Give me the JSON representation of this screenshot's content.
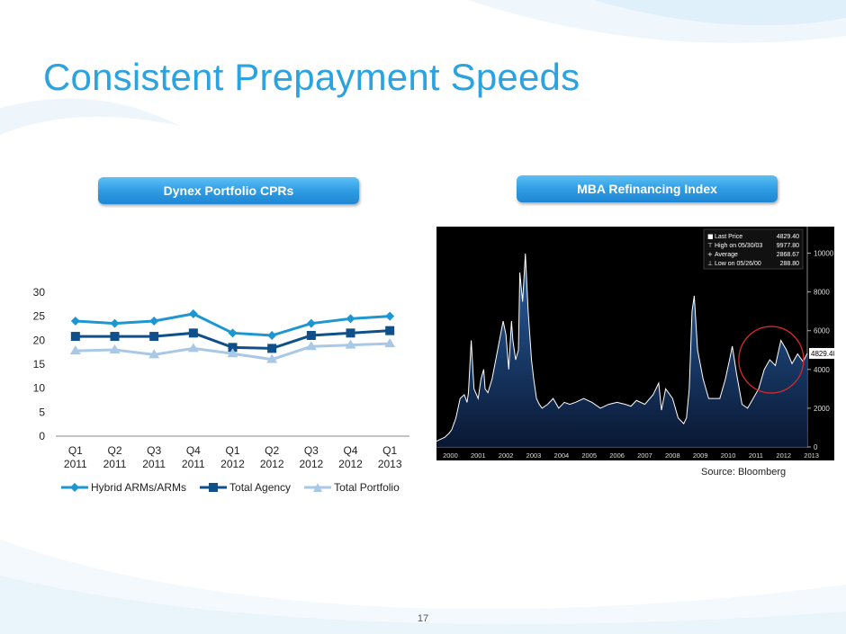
{
  "slide": {
    "title": "Consistent Prepayment Speeds",
    "page_number": "17",
    "left_panel_label": "Dynex Portfolio CPRs",
    "right_panel_label": "MBA Refinancing Index",
    "source": "Source: Bloomberg"
  },
  "colors": {
    "title": "#2aa3e0",
    "hybrid": "#1e96d2",
    "agency": "#0f4f8a",
    "portfolio": "#a9c8e6",
    "mba_bg": "#000000",
    "mba_line": "#ffffff",
    "circle": "#d82a2a"
  },
  "chart_data": [
    {
      "type": "line",
      "title": "",
      "xlabel": "",
      "ylabel": "",
      "ylim": [
        0,
        30
      ],
      "yticks": [
        "0",
        "5",
        "10",
        "15",
        "20",
        "25",
        "30"
      ],
      "categories": [
        "Q1 2011",
        "Q2 2011",
        "Q3 2011",
        "Q4 2011",
        "Q1 2012",
        "Q2 2012",
        "Q3 2012",
        "Q4 2012",
        "Q1 2013"
      ],
      "category_lines": [
        [
          "Q1",
          "2011"
        ],
        [
          "Q2",
          "2011"
        ],
        [
          "Q3",
          "2011"
        ],
        [
          "Q4",
          "2011"
        ],
        [
          "Q1",
          "2012"
        ],
        [
          "Q2",
          "2012"
        ],
        [
          "Q3",
          "2012"
        ],
        [
          "Q4",
          "2012"
        ],
        [
          "Q1",
          "2013"
        ]
      ],
      "legend_position": "bottom",
      "grid": false,
      "series": [
        {
          "name": "Hybrid ARMs/ARMs",
          "marker": "diamond",
          "values": [
            24.0,
            23.5,
            24.0,
            25.5,
            21.5,
            21.0,
            23.5,
            24.5,
            25.0
          ]
        },
        {
          "name": "Total Agency",
          "marker": "square",
          "values": [
            20.8,
            20.8,
            20.8,
            21.5,
            18.5,
            18.3,
            21.0,
            21.5,
            22.0
          ]
        },
        {
          "name": "Total Portfolio",
          "marker": "triangle",
          "values": [
            17.8,
            18.0,
            17.0,
            18.3,
            17.2,
            16.0,
            18.7,
            19.0,
            19.3
          ]
        }
      ]
    },
    {
      "type": "area",
      "title": "",
      "ylim": [
        0,
        11000
      ],
      "y_axis_position": "right",
      "yticks": [
        0,
        2000,
        4000,
        6000,
        8000,
        10000
      ],
      "ytick_labels": [
        "0",
        "2000",
        "4000",
        "6000",
        "8000",
        "10000"
      ],
      "xlim": [
        2000.0,
        2013.35
      ],
      "xticks": [
        "2000",
        "2001",
        "2002",
        "2003",
        "2004",
        "2005",
        "2006",
        "2007",
        "2008",
        "2009",
        "2010",
        "2011",
        "2012",
        "2013"
      ],
      "legend": [
        {
          "label": "Last Price",
          "value": "4829.40"
        },
        {
          "label": "High on 05/30/03",
          "value": "9977.80"
        },
        {
          "label": "Average",
          "value": "2868.67"
        },
        {
          "label": "Low on 05/26/00",
          "value": "288.80"
        }
      ],
      "last_price_tag": "4829.40",
      "highlight": "red circle around 2011–2013",
      "series": [
        {
          "x": [
            2000.0,
            2000.3,
            2000.45,
            2000.55,
            2000.7,
            2000.85,
            2001.0,
            2001.1,
            2001.15,
            2001.25,
            2001.35,
            2001.5,
            2001.6,
            2001.7,
            2001.75,
            2001.85,
            2002.0,
            2002.2,
            2002.4,
            2002.5,
            2002.6,
            2002.7,
            2002.75,
            2002.85,
            2002.95,
            2003.0,
            2003.1,
            2003.2,
            2003.3,
            2003.42,
            2003.5,
            2003.6,
            2003.7,
            2003.8,
            2004.0,
            2004.2,
            2004.4,
            2004.6,
            2004.8,
            2005.0,
            2005.3,
            2005.6,
            2005.9,
            2006.2,
            2006.5,
            2006.8,
            2007.0,
            2007.2,
            2007.5,
            2007.8,
            2008.0,
            2008.1,
            2008.25,
            2008.5,
            2008.7,
            2008.9,
            2009.0,
            2009.1,
            2009.2,
            2009.28,
            2009.4,
            2009.6,
            2009.8,
            2010.0,
            2010.2,
            2010.4,
            2010.55,
            2010.65,
            2010.8,
            2011.0,
            2011.2,
            2011.4,
            2011.6,
            2011.8,
            2012.0,
            2012.2,
            2012.4,
            2012.6,
            2012.8,
            2013.0,
            2013.2,
            2013.35
          ],
          "values": [
            300,
            500,
            700,
            900,
            1500,
            2500,
            2700,
            2300,
            2800,
            5500,
            3000,
            2500,
            3500,
            4000,
            3000,
            2800,
            3500,
            5000,
            6500,
            5800,
            4000,
            6500,
            5500,
            4500,
            5000,
            9000,
            7500,
            9978,
            7000,
            4500,
            3500,
            2500,
            2200,
            2000,
            2200,
            2500,
            2000,
            2300,
            2200,
            2300,
            2500,
            2300,
            2000,
            2200,
            2300,
            2200,
            2100,
            2400,
            2200,
            2700,
            3300,
            1900,
            3000,
            2500,
            1500,
            1200,
            1500,
            3000,
            7000,
            7800,
            5000,
            3500,
            2500,
            2500,
            2500,
            3500,
            4500,
            5200,
            3800,
            2200,
            2000,
            2500,
            3000,
            4000,
            4500,
            4200,
            5500,
            5000,
            4300,
            4800,
            4400,
            4829
          ]
        }
      ]
    }
  ]
}
